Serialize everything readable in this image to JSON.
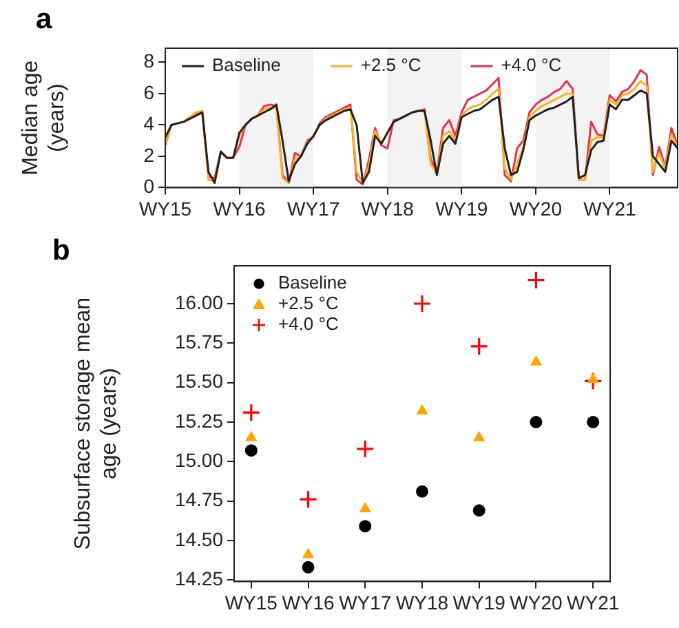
{
  "chart_data": [
    {
      "type": "line",
      "title": "a",
      "ylabel": "Median age (years)",
      "legend": "top",
      "grid": false,
      "marker": "none",
      "line_style": "solid",
      "categories": [
        "WY15",
        null,
        null,
        null,
        null,
        null,
        null,
        null,
        null,
        null,
        null,
        null,
        "WY16",
        null,
        null,
        null,
        null,
        null,
        null,
        null,
        null,
        null,
        null,
        null,
        "WY17",
        null,
        null,
        null,
        null,
        null,
        null,
        null,
        null,
        null,
        null,
        null,
        "WY18",
        null,
        null,
        null,
        null,
        null,
        null,
        null,
        null,
        null,
        null,
        null,
        "WY19",
        null,
        null,
        null,
        null,
        null,
        null,
        null,
        null,
        null,
        null,
        null,
        "WY20",
        null,
        null,
        null,
        null,
        null,
        null,
        null,
        null,
        null,
        null,
        null,
        "WY21",
        null,
        null,
        null,
        null,
        null,
        null,
        null,
        null,
        null,
        null,
        null
      ],
      "ylim": [
        0,
        8.9
      ],
      "yticks": [
        0,
        2,
        4,
        6,
        8
      ],
      "bands": [
        {
          "axis": "x",
          "from": "WY16",
          "to": "WY17",
          "color": "#f3f3f3"
        },
        {
          "axis": "x",
          "from": "WY18",
          "to": "WY19",
          "color": "#f3f3f3"
        },
        {
          "axis": "x",
          "from": "WY20",
          "to": "WY21",
          "color": "#f3f3f3"
        }
      ],
      "series": [
        {
          "name": "Baseline",
          "color": "#222222",
          "values": [
            3.2,
            4.0,
            4.1,
            4.2,
            4.4,
            4.6,
            4.8,
            1.0,
            0.3,
            2.3,
            1.9,
            1.9,
            3.5,
            4.0,
            4.4,
            4.6,
            4.8,
            5.0,
            5.3,
            3.0,
            0.4,
            1.5,
            2.0,
            2.8,
            3.3,
            4.0,
            4.3,
            4.5,
            4.7,
            4.9,
            5.0,
            4.0,
            0.3,
            1.0,
            3.3,
            2.8,
            3.5,
            4.2,
            4.4,
            4.6,
            4.8,
            4.9,
            4.9,
            3.0,
            0.8,
            2.8,
            3.3,
            2.8,
            4.5,
            4.7,
            4.9,
            5.0,
            5.3,
            5.6,
            5.8,
            2.5,
            0.8,
            1.0,
            2.4,
            4.3,
            4.6,
            4.8,
            5.0,
            5.1,
            5.3,
            5.5,
            5.8,
            0.6,
            0.8,
            2.4,
            2.9,
            3.0,
            5.3,
            5.0,
            5.6,
            5.6,
            5.9,
            6.2,
            6.0,
            2.0,
            1.5,
            1.0,
            3.0,
            2.5
          ]
        },
        {
          "name": "+2.5 °C",
          "color": "#ffb020",
          "values": [
            2.8,
            4.0,
            4.1,
            4.2,
            4.5,
            4.8,
            4.9,
            0.5,
            0.4,
            2.2,
            1.9,
            1.9,
            3.3,
            4.0,
            4.4,
            4.6,
            5.0,
            5.1,
            5.1,
            0.6,
            0.3,
            1.8,
            2.0,
            2.9,
            3.2,
            4.0,
            4.4,
            4.6,
            4.8,
            5.0,
            5.1,
            1.0,
            0.3,
            1.4,
            3.6,
            2.8,
            3.5,
            4.2,
            4.4,
            4.6,
            4.8,
            4.9,
            4.9,
            1.5,
            0.9,
            3.3,
            3.6,
            3.0,
            4.6,
            5.0,
            5.2,
            5.3,
            5.6,
            6.0,
            6.3,
            1.2,
            0.5,
            1.5,
            2.6,
            4.5,
            4.9,
            5.2,
            5.4,
            5.6,
            5.8,
            6.0,
            6.0,
            0.5,
            0.5,
            3.0,
            3.2,
            3.2,
            5.6,
            5.3,
            5.9,
            6.0,
            6.3,
            6.8,
            6.5,
            1.0,
            2.2,
            1.2,
            3.4,
            2.6
          ]
        },
        {
          "name": "+4.0 °C",
          "color": "#e8304a",
          "values": [
            2.7,
            4.0,
            4.1,
            4.2,
            4.5,
            4.7,
            4.8,
            0.7,
            0.6,
            2.3,
            1.9,
            1.9,
            2.6,
            4.0,
            4.4,
            4.6,
            5.2,
            5.3,
            5.2,
            0.8,
            0.3,
            2.2,
            2.0,
            3.0,
            3.2,
            4.1,
            4.5,
            4.7,
            4.9,
            5.1,
            5.3,
            0.5,
            0.2,
            1.8,
            3.8,
            2.7,
            2.5,
            4.3,
            4.4,
            4.6,
            4.8,
            4.9,
            5.0,
            1.8,
            1.0,
            3.8,
            4.3,
            3.3,
            4.8,
            5.6,
            5.8,
            6.0,
            6.2,
            6.6,
            7.0,
            0.8,
            0.4,
            2.5,
            3.0,
            4.8,
            5.3,
            5.6,
            5.8,
            6.1,
            6.3,
            6.8,
            6.3,
            0.5,
            0.5,
            4.2,
            3.4,
            3.3,
            5.9,
            5.5,
            6.1,
            6.3,
            6.8,
            7.5,
            7.2,
            0.8,
            2.6,
            1.3,
            3.8,
            2.7
          ]
        }
      ]
    },
    {
      "type": "scatter",
      "title": "b",
      "ylabel": "Subsurface storage mean age (years)",
      "legend": "top left",
      "grid": false,
      "categories": [
        "WY15",
        "WY16",
        "WY17",
        "WY18",
        "WY19",
        "WY20",
        "WY21"
      ],
      "ylim": [
        14.24,
        16.24
      ],
      "yticks": [
        {
          "value": 14.25,
          "label": "14.25"
        },
        {
          "value": 14.5,
          "label": "14.50"
        },
        {
          "value": 14.75,
          "label": "14.75"
        },
        {
          "value": 15,
          "label": "15.00"
        },
        {
          "value": 15.25,
          "label": "15.25"
        },
        {
          "value": 15.5,
          "label": "15.50"
        },
        {
          "value": 15.75,
          "label": "15.75"
        },
        {
          "value": 16,
          "label": "16.00"
        }
      ],
      "series": [
        {
          "name": "Baseline",
          "color": "#000000",
          "marker": "circle",
          "values": [
            15.07,
            14.33,
            14.59,
            14.81,
            14.69,
            15.25,
            15.25
          ]
        },
        {
          "name": "+2.5 °C",
          "color": "#ffa500",
          "marker": "triangle",
          "values": [
            15.15,
            14.41,
            14.7,
            15.32,
            15.15,
            15.63,
            15.52
          ]
        },
        {
          "name": "+4.0 °C",
          "color": "#ff0000",
          "marker": "cross",
          "values": [
            15.31,
            14.76,
            15.08,
            16.0,
            15.73,
            16.15,
            15.51
          ]
        }
      ]
    }
  ]
}
